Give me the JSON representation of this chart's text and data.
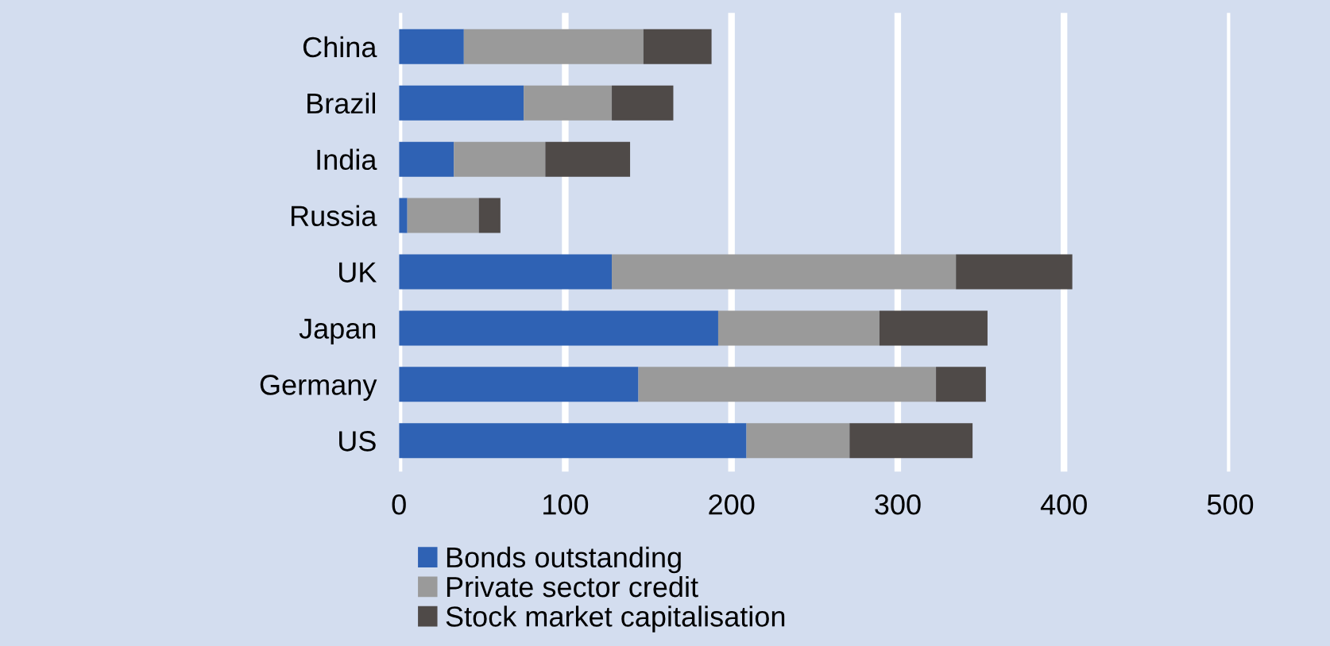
{
  "chart_data": {
    "type": "bar",
    "orientation": "horizontal",
    "stacked": true,
    "categories": [
      "China",
      "Brazil",
      "India",
      "Russia",
      "UK",
      "Japan",
      "Germany",
      "US"
    ],
    "series": [
      {
        "name": "Bonds outstanding",
        "color": "#2f62b4",
        "values": [
          39,
          75,
          33,
          5,
          128,
          192,
          144,
          209
        ]
      },
      {
        "name": "Private sector credit",
        "color": "#9a9a9a",
        "values": [
          108,
          53,
          55,
          43,
          207,
          97,
          179,
          62
        ]
      },
      {
        "name": "Stock market capitalisation",
        "color": "#4f4a48",
        "values": [
          41,
          37,
          51,
          13,
          70,
          65,
          30,
          74
        ]
      }
    ],
    "xlim": [
      0,
      500
    ],
    "xticks": [
      0,
      100,
      200,
      300,
      400,
      500
    ],
    "grid": "x",
    "legend": "bottom left"
  }
}
